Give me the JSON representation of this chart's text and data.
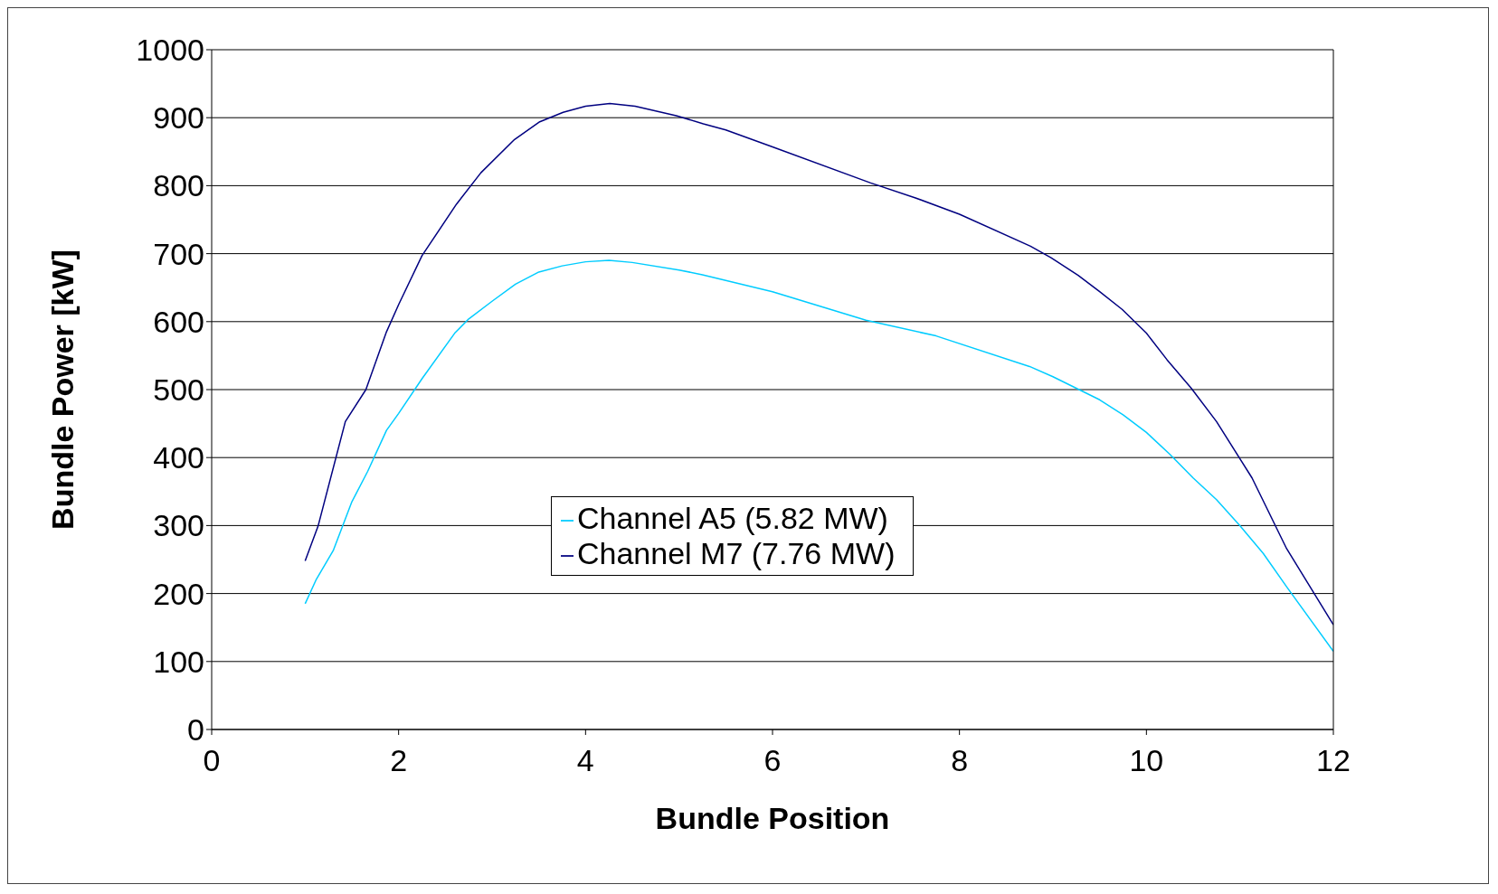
{
  "chart_data": {
    "type": "line",
    "xlabel": "Bundle Position",
    "ylabel": "Bundle Power [kW]",
    "xlim": [
      0,
      12
    ],
    "xticks": [
      0,
      2,
      4,
      6,
      8,
      10,
      12
    ],
    "ylim": [
      0,
      1000
    ],
    "yticks": [
      0,
      100,
      200,
      300,
      400,
      500,
      600,
      700,
      800,
      900,
      1000
    ],
    "grid": "y",
    "legend": "center",
    "marker": "none",
    "line_style": "solid",
    "series": [
      {
        "name": "Channel A5 (5.82 MW)",
        "color": "#00ccff",
        "x": [
          1,
          1.12,
          1.3,
          1.5,
          1.67,
          1.87,
          2,
          2.25,
          2.6,
          2.75,
          3,
          3.25,
          3.5,
          3.75,
          4,
          4.25,
          4.5,
          5,
          5.25,
          6,
          7,
          7.75,
          8.75,
          9,
          9.5,
          9.75,
          10,
          10.25,
          10.5,
          10.75,
          11,
          11.25,
          11.5,
          12
        ],
        "values": [
          185,
          221,
          263,
          335,
          380,
          440,
          465,
          516,
          583,
          604,
          630,
          655,
          673,
          682,
          688,
          690,
          687,
          676,
          669,
          644,
          602,
          579,
          534,
          519,
          485,
          463,
          437,
          405,
          370,
          338,
          300,
          259,
          210,
          115
        ]
      },
      {
        "name": "Channel M7 (7.76 MW)",
        "color": "#000080",
        "x": [
          1,
          1.14,
          1.43,
          1.65,
          1.87,
          2,
          2.25,
          2.62,
          2.88,
          3.24,
          3.51,
          3.76,
          4,
          4.26,
          4.53,
          4.97,
          5.26,
          5.5,
          5.98,
          7.05,
          7.53,
          8,
          8.76,
          8.98,
          9.27,
          9.5,
          9.74,
          10,
          10.22,
          10.48,
          10.75,
          11.13,
          11.5,
          12
        ],
        "values": [
          248,
          300,
          453,
          500,
          585,
          625,
          697,
          773,
          819,
          868,
          894,
          908,
          917,
          921,
          917,
          903,
          891,
          882,
          858,
          804,
          782,
          758,
          711,
          694,
          668,
          644,
          618,
          583,
          544,
          502,
          453,
          370,
          266,
          154
        ]
      }
    ]
  }
}
